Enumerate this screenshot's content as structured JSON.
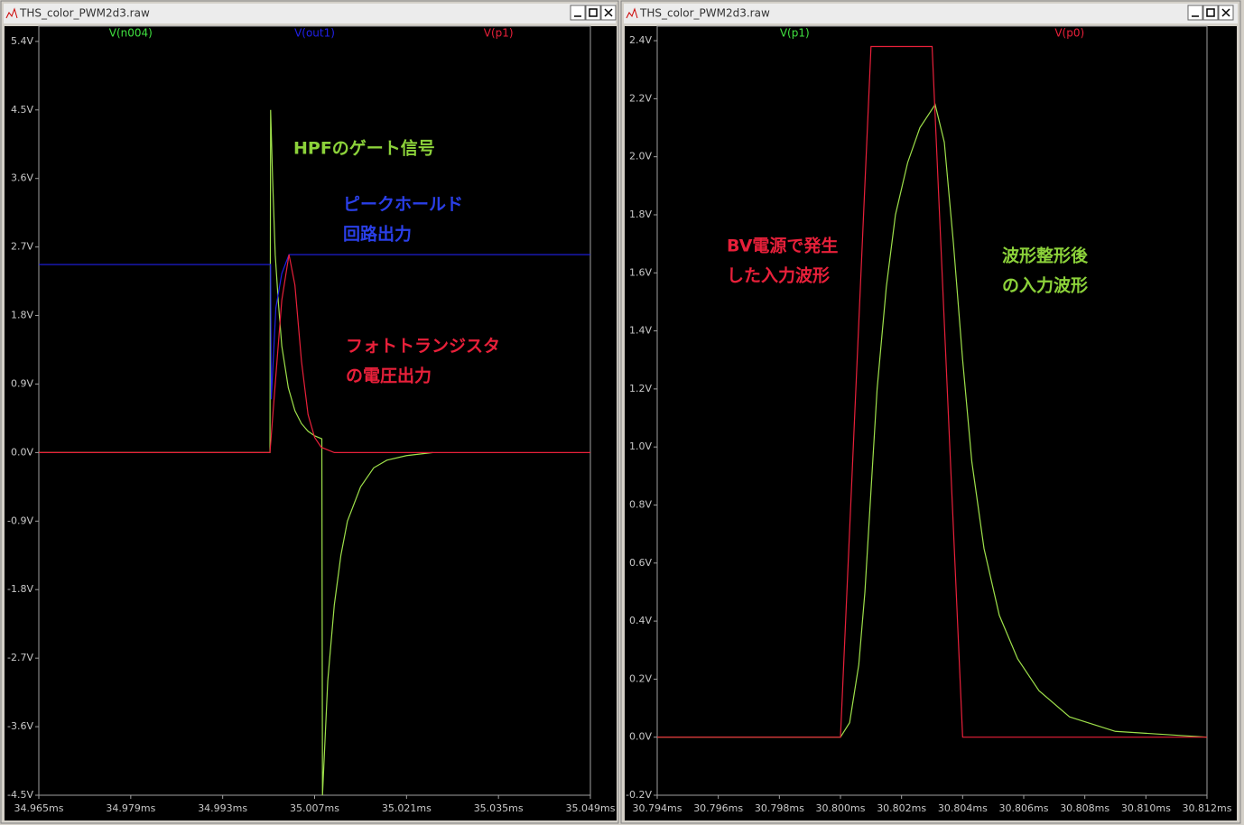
{
  "windows": [
    {
      "title": "THS_color_PWM2d3.raw"
    },
    {
      "title": "THS_color_PWM2d3.raw"
    }
  ],
  "chart_data": [
    {
      "type": "line",
      "xlim": [
        34.965,
        35.049
      ],
      "ylim": [
        -4.5,
        5.6
      ],
      "xticks": [
        {
          "value": 34.965,
          "label": "34.965ms"
        },
        {
          "value": 34.979,
          "label": "34.979ms"
        },
        {
          "value": 34.993,
          "label": "34.993ms"
        },
        {
          "value": 35.007,
          "label": "35.007ms"
        },
        {
          "value": 35.021,
          "label": "35.021ms"
        },
        {
          "value": 35.035,
          "label": "35.035ms"
        },
        {
          "value": 35.049,
          "label": "35.049ms"
        }
      ],
      "yticks": [
        {
          "value": 5.4,
          "label": "5.4V"
        },
        {
          "value": 4.5,
          "label": "4.5V"
        },
        {
          "value": 3.6,
          "label": "3.6V"
        },
        {
          "value": 2.7,
          "label": "2.7V"
        },
        {
          "value": 1.8,
          "label": "1.8V"
        },
        {
          "value": 0.9,
          "label": "0.9V"
        },
        {
          "value": 0,
          "label": "0.0V"
        },
        {
          "value": -0.9,
          "label": "-0.9V"
        },
        {
          "value": -1.8,
          "label": "-1.8V"
        },
        {
          "value": -2.7,
          "label": "-2.7V"
        },
        {
          "value": -3.6,
          "label": "-3.6V"
        },
        {
          "value": -4.5,
          "label": "-4.5V"
        }
      ],
      "series": [
        {
          "name": "V(n004)",
          "color": "#3fe03f",
          "line_color": "#9ee04a",
          "x": [
            34.965,
            35.0002,
            35.0003,
            35.0006,
            35.001,
            35.0015,
            35.002,
            35.003,
            35.004,
            35.005,
            35.006,
            35.007,
            35.0081,
            35.0082,
            35.009,
            35.01,
            35.011,
            35.012,
            35.014,
            35.016,
            35.018,
            35.021,
            35.025
          ],
          "values": [
            0,
            0,
            4.5,
            3.6,
            2.6,
            1.95,
            1.4,
            0.85,
            0.55,
            0.38,
            0.28,
            0.22,
            0.18,
            -4.5,
            -3.0,
            -2.0,
            -1.35,
            -0.9,
            -0.45,
            -0.2,
            -0.1,
            -0.04,
            0
          ]
        },
        {
          "name": "V(out1)",
          "color": "#2020e8",
          "line_color": "#2020e8",
          "x": [
            34.965,
            35.0003,
            35.0004,
            35.0011,
            35.002,
            35.0031,
            35.049
          ],
          "values": [
            2.47,
            2.47,
            0.7,
            1.9,
            2.35,
            2.6,
            2.6
          ]
        },
        {
          "name": "V(p1)",
          "color": "#e8203a",
          "line_color": "#e8203a",
          "x": [
            34.965,
            35.0002,
            35.001,
            35.002,
            35.0031,
            35.004,
            35.005,
            35.006,
            35.007,
            35.008,
            35.01,
            35.049
          ],
          "values": [
            0,
            0,
            0.9,
            2.0,
            2.6,
            2.2,
            1.2,
            0.5,
            0.2,
            0.07,
            0,
            0
          ]
        }
      ],
      "annotations": [
        {
          "lines": [
            "HPFのゲート信号"
          ],
          "color": "#8cd23a"
        },
        {
          "lines": [
            "ピークホールド",
            "回路出力"
          ],
          "color": "#2a3fe8"
        },
        {
          "lines": [
            "フォトトランジスタ",
            "の電圧出力"
          ],
          "color": "#e8203a"
        }
      ]
    },
    {
      "type": "line",
      "xlim": [
        30.794,
        30.812
      ],
      "ylim": [
        -0.2,
        2.45
      ],
      "xticks": [
        {
          "value": 30.794,
          "label": "30.794ms"
        },
        {
          "value": 30.796,
          "label": "30.796ms"
        },
        {
          "value": 30.798,
          "label": "30.798ms"
        },
        {
          "value": 30.8,
          "label": "30.800ms"
        },
        {
          "value": 30.802,
          "label": "30.802ms"
        },
        {
          "value": 30.804,
          "label": "30.804ms"
        },
        {
          "value": 30.806,
          "label": "30.806ms"
        },
        {
          "value": 30.808,
          "label": "30.808ms"
        },
        {
          "value": 30.81,
          "label": "30.810ms"
        },
        {
          "value": 30.812,
          "label": "30.812ms"
        }
      ],
      "yticks": [
        {
          "value": 2.4,
          "label": "2.4V"
        },
        {
          "value": 2.2,
          "label": "2.2V"
        },
        {
          "value": 2.0,
          "label": "2.0V"
        },
        {
          "value": 1.8,
          "label": "1.8V"
        },
        {
          "value": 1.6,
          "label": "1.6V"
        },
        {
          "value": 1.4,
          "label": "1.4V"
        },
        {
          "value": 1.2,
          "label": "1.2V"
        },
        {
          "value": 1.0,
          "label": "1.0V"
        },
        {
          "value": 0.8,
          "label": "0.8V"
        },
        {
          "value": 0.6,
          "label": "0.6V"
        },
        {
          "value": 0.4,
          "label": "0.4V"
        },
        {
          "value": 0.2,
          "label": "0.2V"
        },
        {
          "value": 0,
          "label": "0.0V"
        },
        {
          "value": -0.2,
          "label": "-0.2V"
        }
      ],
      "series": [
        {
          "name": "V(p1)",
          "color": "#3fe03f",
          "line_color": "#9ee04a",
          "x": [
            30.794,
            30.8,
            30.8003,
            30.8006,
            30.8008,
            30.801,
            30.8012,
            30.8015,
            30.8018,
            30.8022,
            30.8026,
            30.8031,
            30.8034,
            30.8037,
            30.804,
            30.8043,
            30.8047,
            30.8052,
            30.8058,
            30.8065,
            30.8075,
            30.809,
            30.812
          ],
          "values": [
            0,
            0,
            0.05,
            0.25,
            0.5,
            0.85,
            1.2,
            1.55,
            1.8,
            1.98,
            2.1,
            2.18,
            2.05,
            1.7,
            1.3,
            0.95,
            0.65,
            0.42,
            0.27,
            0.16,
            0.07,
            0.02,
            0
          ]
        },
        {
          "name": "V(p0)",
          "color": "#e8203a",
          "line_color": "#e8203a",
          "x": [
            30.794,
            30.8,
            30.801,
            30.803,
            30.804,
            30.812
          ],
          "values": [
            0,
            0,
            2.38,
            2.38,
            0,
            0
          ]
        }
      ],
      "annotations": [
        {
          "lines": [
            "BV電源で発生",
            "した入力波形"
          ],
          "color": "#e8203a"
        },
        {
          "lines": [
            "波形整形後",
            "の入力波形"
          ],
          "color": "#8cd23a"
        }
      ]
    }
  ]
}
